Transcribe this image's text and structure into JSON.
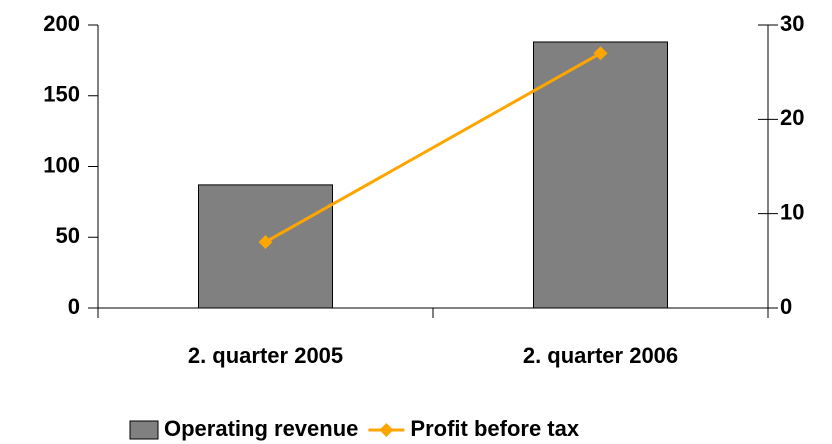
{
  "chart_data": {
    "type": "bar",
    "categories": [
      "2. quarter 2005",
      "2. quarter 2006"
    ],
    "series": [
      {
        "name": "Operating revenue",
        "type": "bar",
        "color": "#808080",
        "values": [
          87,
          188
        ]
      },
      {
        "name": "Profit before tax",
        "type": "line",
        "color": "#ffa500",
        "axis": "y2",
        "values": [
          7,
          27
        ]
      }
    ],
    "ylim": [
      0,
      200
    ],
    "yticks": [
      0,
      50,
      100,
      150,
      200
    ],
    "y2lim": [
      0,
      30
    ],
    "y2ticks": [
      0,
      10,
      20,
      30
    ],
    "legend": "bottom"
  }
}
